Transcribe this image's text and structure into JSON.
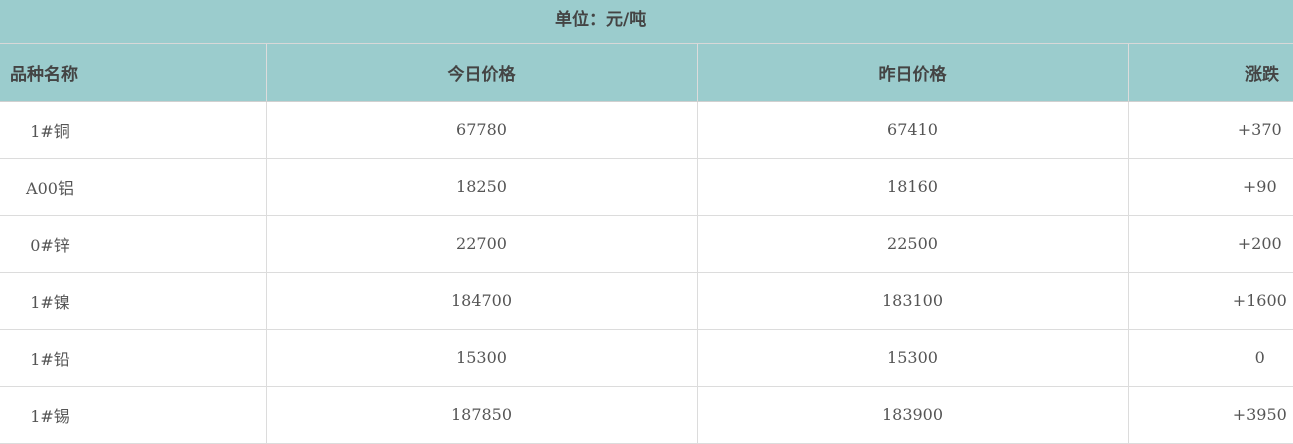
{
  "unit_label": "单位：元/吨",
  "columns": [
    "品种名称",
    "今日价格",
    "昨日价格",
    "涨跌"
  ],
  "rows": [
    {
      "name": "1#铜",
      "today": "67780",
      "yesterday": "67410",
      "change": "+370"
    },
    {
      "name": "A00铝",
      "today": "18250",
      "yesterday": "18160",
      "change": "+90"
    },
    {
      "name": "0#锌",
      "today": "22700",
      "yesterday": "22500",
      "change": "+200"
    },
    {
      "name": "1#镍",
      "today": "184700",
      "yesterday": "183100",
      "change": "+1600"
    },
    {
      "name": "1#铅",
      "today": "15300",
      "yesterday": "15300",
      "change": "0"
    },
    {
      "name": "1#锡",
      "today": "187850",
      "yesterday": "183900",
      "change": "+3950"
    }
  ],
  "colors": {
    "header_bg": "#9bcccd",
    "text": "#444444",
    "border": "#dcdcdc"
  }
}
